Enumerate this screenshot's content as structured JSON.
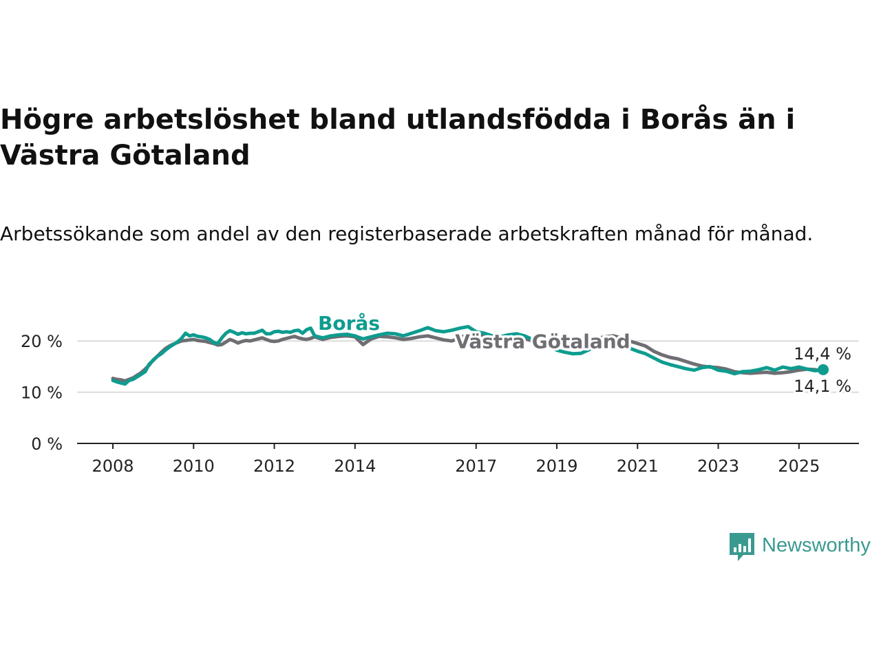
{
  "title": "Högre arbetslöshet bland utlandsfödda i Borås än i Västra Götaland",
  "subtitle": "Arbetssökande som andel av den registerbaserade arbetskraften månad för månad.",
  "brand": {
    "name": "Newsworthy",
    "color": "#3a9a90",
    "icon": "bar-chart-speech-bubble-icon"
  },
  "chart_data": {
    "type": "line",
    "title": "Högre arbetslöshet bland utlandsfödda i Borås än i Västra Götaland",
    "subtitle": "Arbetssökande som andel av den registerbaserade arbetskraften månad för månad.",
    "xlabel": "",
    "ylabel": "",
    "x_range": [
      2008,
      2025.6
    ],
    "ylim": [
      0,
      25
    ],
    "x_ticks": [
      {
        "value": 2008,
        "label": "2008"
      },
      {
        "value": 2010,
        "label": "2010"
      },
      {
        "value": 2012,
        "label": "2012"
      },
      {
        "value": 2014,
        "label": "2014"
      },
      {
        "value": 2017,
        "label": "2017"
      },
      {
        "value": 2019,
        "label": "2019"
      },
      {
        "value": 2021,
        "label": "2021"
      },
      {
        "value": 2023,
        "label": "2023"
      },
      {
        "value": 2025,
        "label": "2025"
      }
    ],
    "y_ticks": [
      {
        "value": 0,
        "label": "0 %"
      },
      {
        "value": 10,
        "label": "10 %"
      },
      {
        "value": 20,
        "label": "20 %"
      }
    ],
    "grid": "horizontal",
    "series": [
      {
        "name": "Västra Götaland",
        "color": "#6e6e73",
        "label_position": [
          2018.65,
          18.6
        ],
        "x": [
          2008.0,
          2008.1,
          2008.2,
          2008.3,
          2008.4,
          2008.5,
          2008.6,
          2008.7,
          2008.8,
          2008.9,
          2009.0,
          2009.1,
          2009.2,
          2009.3,
          2009.4,
          2009.5,
          2009.6,
          2009.7,
          2009.8,
          2009.9,
          2010.0,
          2010.1,
          2010.2,
          2010.3,
          2010.4,
          2010.5,
          2010.6,
          2010.7,
          2010.8,
          2010.9,
          2011.0,
          2011.1,
          2011.2,
          2011.3,
          2011.4,
          2011.5,
          2011.6,
          2011.7,
          2011.8,
          2011.9,
          2012.0,
          2012.1,
          2012.2,
          2012.3,
          2012.4,
          2012.5,
          2012.6,
          2012.7,
          2012.8,
          2012.9,
          2013.0,
          2013.2,
          2013.4,
          2013.6,
          2013.8,
          2014.0,
          2014.2,
          2014.4,
          2014.6,
          2014.8,
          2015.0,
          2015.2,
          2015.4,
          2015.6,
          2015.8,
          2016.0,
          2016.2,
          2016.4,
          2016.6,
          2016.8,
          2017.0,
          2017.2,
          2017.4,
          2017.6,
          2017.8,
          2018.0,
          2018.2,
          2018.4,
          2018.6,
          2018.8,
          2019.0,
          2019.2,
          2019.4,
          2019.6,
          2019.8,
          2020.0,
          2020.2,
          2020.4,
          2020.6,
          2020.8,
          2021.0,
          2021.2,
          2021.4,
          2021.6,
          2021.8,
          2022.0,
          2022.2,
          2022.4,
          2022.6,
          2022.8,
          2023.0,
          2023.2,
          2023.4,
          2023.6,
          2023.8,
          2024.0,
          2024.2,
          2024.4,
          2024.6,
          2024.8,
          2025.0,
          2025.2,
          2025.4,
          2025.6
        ],
        "values": [
          12.7,
          12.5,
          12.4,
          12.2,
          12.5,
          12.8,
          13.3,
          13.8,
          14.5,
          15.3,
          16.3,
          17.0,
          17.8,
          18.5,
          19.0,
          19.4,
          19.7,
          20.0,
          20.1,
          20.2,
          20.3,
          20.1,
          20.0,
          19.9,
          19.7,
          19.5,
          19.2,
          19.3,
          19.8,
          20.3,
          20.0,
          19.6,
          19.9,
          20.1,
          20.0,
          20.2,
          20.4,
          20.6,
          20.3,
          20.0,
          19.9,
          20.0,
          20.3,
          20.5,
          20.7,
          20.9,
          20.6,
          20.4,
          20.3,
          20.5,
          20.8,
          20.3,
          20.7,
          20.9,
          21.0,
          20.8,
          19.3,
          20.4,
          20.9,
          20.8,
          20.6,
          20.3,
          20.5,
          20.8,
          21.0,
          20.6,
          20.2,
          20.0,
          20.6,
          21.3,
          21.6,
          21.0,
          20.4,
          20.0,
          20.4,
          20.8,
          20.5,
          20.0,
          19.8,
          19.5,
          19.3,
          19.2,
          19.4,
          19.8,
          20.2,
          20.5,
          20.8,
          21.0,
          20.6,
          20.0,
          19.5,
          19.0,
          18.0,
          17.3,
          16.8,
          16.5,
          16.0,
          15.5,
          15.1,
          14.9,
          14.8,
          14.5,
          14.0,
          13.8,
          13.7,
          13.8,
          13.9,
          13.7,
          13.8,
          14.0,
          14.3,
          14.5,
          14.4,
          14.1
        ]
      },
      {
        "name": "Borås",
        "color": "#0e9c8f",
        "label_position": [
          2013.85,
          22.2
        ],
        "x": [
          2008.0,
          2008.1,
          2008.2,
          2008.3,
          2008.4,
          2008.5,
          2008.6,
          2008.7,
          2008.8,
          2008.9,
          2009.0,
          2009.1,
          2009.2,
          2009.3,
          2009.4,
          2009.5,
          2009.6,
          2009.7,
          2009.8,
          2009.9,
          2010.0,
          2010.1,
          2010.2,
          2010.3,
          2010.4,
          2010.5,
          2010.6,
          2010.7,
          2010.8,
          2010.9,
          2011.0,
          2011.1,
          2011.2,
          2011.3,
          2011.4,
          2011.5,
          2011.6,
          2011.7,
          2011.8,
          2011.9,
          2012.0,
          2012.1,
          2012.2,
          2012.3,
          2012.4,
          2012.5,
          2012.6,
          2012.7,
          2012.8,
          2012.9,
          2013.0,
          2013.2,
          2013.4,
          2013.6,
          2013.8,
          2014.0,
          2014.2,
          2014.4,
          2014.6,
          2014.8,
          2015.0,
          2015.2,
          2015.4,
          2015.6,
          2015.8,
          2016.0,
          2016.2,
          2016.4,
          2016.6,
          2016.8,
          2017.0,
          2017.2,
          2017.4,
          2017.6,
          2017.8,
          2018.0,
          2018.2,
          2018.4,
          2018.6,
          2018.8,
          2019.0,
          2019.2,
          2019.4,
          2019.6,
          2019.8,
          2020.0,
          2020.2,
          2020.4,
          2020.6,
          2020.8,
          2021.0,
          2021.2,
          2021.4,
          2021.6,
          2021.8,
          2022.0,
          2022.2,
          2022.4,
          2022.6,
          2022.8,
          2023.0,
          2023.2,
          2023.4,
          2023.6,
          2023.8,
          2024.0,
          2024.2,
          2024.4,
          2024.6,
          2024.8,
          2025.0,
          2025.2,
          2025.4,
          2025.6
        ],
        "values": [
          12.3,
          12.0,
          11.8,
          11.6,
          12.3,
          12.5,
          13.0,
          13.5,
          14.0,
          15.5,
          16.2,
          17.0,
          17.5,
          18.2,
          18.8,
          19.3,
          19.8,
          20.5,
          21.5,
          21.0,
          21.2,
          20.9,
          20.8,
          20.6,
          20.3,
          19.7,
          19.5,
          20.6,
          21.5,
          22.0,
          21.7,
          21.3,
          21.6,
          21.4,
          21.5,
          21.5,
          21.8,
          22.1,
          21.4,
          21.4,
          21.8,
          21.9,
          21.7,
          21.8,
          21.7,
          22.0,
          22.1,
          21.5,
          22.2,
          22.5,
          21.0,
          20.6,
          21.0,
          21.2,
          21.3,
          21.0,
          20.4,
          20.8,
          21.2,
          21.5,
          21.4,
          21.0,
          21.5,
          22.0,
          22.6,
          22.0,
          21.8,
          22.1,
          22.5,
          22.8,
          21.8,
          21.5,
          21.0,
          20.8,
          21.2,
          21.4,
          21.0,
          20.3,
          19.5,
          18.9,
          18.2,
          17.8,
          17.5,
          17.6,
          18.3,
          19.2,
          19.9,
          20.0,
          19.4,
          18.6,
          18.0,
          17.5,
          16.7,
          15.9,
          15.4,
          15.0,
          14.6,
          14.3,
          14.8,
          15.0,
          14.3,
          14.1,
          13.6,
          14.0,
          14.1,
          14.4,
          14.8,
          14.3,
          14.9,
          14.6,
          14.9,
          14.5,
          14.2,
          14.4
        ]
      }
    ],
    "end_labels": {
      "upper": "14,4 %",
      "lower": "14,1 %"
    }
  }
}
